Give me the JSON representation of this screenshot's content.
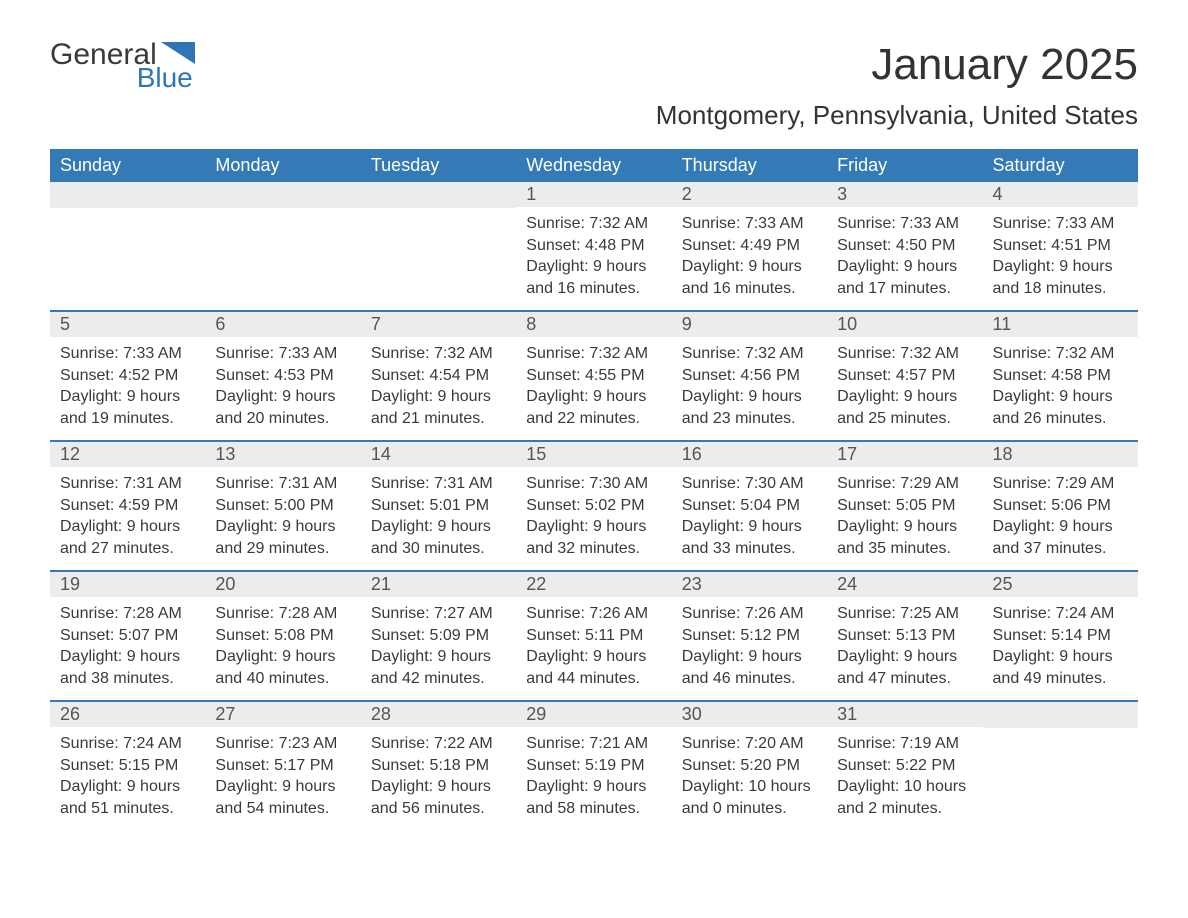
{
  "brand": {
    "word1": "General",
    "word2": "Blue",
    "color1": "#3a3a3a",
    "color2": "#3076b7"
  },
  "title": "January 2025",
  "location": "Montgomery, Pennsylvania, United States",
  "header_bg": "#347ab6",
  "header_fg": "#ffffff",
  "daynum_bg": "#ececec",
  "week_border": "#347ab6",
  "text_color": "#3a3a3a",
  "font_family": "Arial, Helvetica, sans-serif",
  "day_headers": [
    "Sunday",
    "Monday",
    "Tuesday",
    "Wednesday",
    "Thursday",
    "Friday",
    "Saturday"
  ],
  "weeks": [
    [
      null,
      null,
      null,
      {
        "n": "1",
        "sunrise": "7:32 AM",
        "sunset": "4:48 PM",
        "dl1": "Daylight: 9 hours",
        "dl2": "and 16 minutes."
      },
      {
        "n": "2",
        "sunrise": "7:33 AM",
        "sunset": "4:49 PM",
        "dl1": "Daylight: 9 hours",
        "dl2": "and 16 minutes."
      },
      {
        "n": "3",
        "sunrise": "7:33 AM",
        "sunset": "4:50 PM",
        "dl1": "Daylight: 9 hours",
        "dl2": "and 17 minutes."
      },
      {
        "n": "4",
        "sunrise": "7:33 AM",
        "sunset": "4:51 PM",
        "dl1": "Daylight: 9 hours",
        "dl2": "and 18 minutes."
      }
    ],
    [
      {
        "n": "5",
        "sunrise": "7:33 AM",
        "sunset": "4:52 PM",
        "dl1": "Daylight: 9 hours",
        "dl2": "and 19 minutes."
      },
      {
        "n": "6",
        "sunrise": "7:33 AM",
        "sunset": "4:53 PM",
        "dl1": "Daylight: 9 hours",
        "dl2": "and 20 minutes."
      },
      {
        "n": "7",
        "sunrise": "7:32 AM",
        "sunset": "4:54 PM",
        "dl1": "Daylight: 9 hours",
        "dl2": "and 21 minutes."
      },
      {
        "n": "8",
        "sunrise": "7:32 AM",
        "sunset": "4:55 PM",
        "dl1": "Daylight: 9 hours",
        "dl2": "and 22 minutes."
      },
      {
        "n": "9",
        "sunrise": "7:32 AM",
        "sunset": "4:56 PM",
        "dl1": "Daylight: 9 hours",
        "dl2": "and 23 minutes."
      },
      {
        "n": "10",
        "sunrise": "7:32 AM",
        "sunset": "4:57 PM",
        "dl1": "Daylight: 9 hours",
        "dl2": "and 25 minutes."
      },
      {
        "n": "11",
        "sunrise": "7:32 AM",
        "sunset": "4:58 PM",
        "dl1": "Daylight: 9 hours",
        "dl2": "and 26 minutes."
      }
    ],
    [
      {
        "n": "12",
        "sunrise": "7:31 AM",
        "sunset": "4:59 PM",
        "dl1": "Daylight: 9 hours",
        "dl2": "and 27 minutes."
      },
      {
        "n": "13",
        "sunrise": "7:31 AM",
        "sunset": "5:00 PM",
        "dl1": "Daylight: 9 hours",
        "dl2": "and 29 minutes."
      },
      {
        "n": "14",
        "sunrise": "7:31 AM",
        "sunset": "5:01 PM",
        "dl1": "Daylight: 9 hours",
        "dl2": "and 30 minutes."
      },
      {
        "n": "15",
        "sunrise": "7:30 AM",
        "sunset": "5:02 PM",
        "dl1": "Daylight: 9 hours",
        "dl2": "and 32 minutes."
      },
      {
        "n": "16",
        "sunrise": "7:30 AM",
        "sunset": "5:04 PM",
        "dl1": "Daylight: 9 hours",
        "dl2": "and 33 minutes."
      },
      {
        "n": "17",
        "sunrise": "7:29 AM",
        "sunset": "5:05 PM",
        "dl1": "Daylight: 9 hours",
        "dl2": "and 35 minutes."
      },
      {
        "n": "18",
        "sunrise": "7:29 AM",
        "sunset": "5:06 PM",
        "dl1": "Daylight: 9 hours",
        "dl2": "and 37 minutes."
      }
    ],
    [
      {
        "n": "19",
        "sunrise": "7:28 AM",
        "sunset": "5:07 PM",
        "dl1": "Daylight: 9 hours",
        "dl2": "and 38 minutes."
      },
      {
        "n": "20",
        "sunrise": "7:28 AM",
        "sunset": "5:08 PM",
        "dl1": "Daylight: 9 hours",
        "dl2": "and 40 minutes."
      },
      {
        "n": "21",
        "sunrise": "7:27 AM",
        "sunset": "5:09 PM",
        "dl1": "Daylight: 9 hours",
        "dl2": "and 42 minutes."
      },
      {
        "n": "22",
        "sunrise": "7:26 AM",
        "sunset": "5:11 PM",
        "dl1": "Daylight: 9 hours",
        "dl2": "and 44 minutes."
      },
      {
        "n": "23",
        "sunrise": "7:26 AM",
        "sunset": "5:12 PM",
        "dl1": "Daylight: 9 hours",
        "dl2": "and 46 minutes."
      },
      {
        "n": "24",
        "sunrise": "7:25 AM",
        "sunset": "5:13 PM",
        "dl1": "Daylight: 9 hours",
        "dl2": "and 47 minutes."
      },
      {
        "n": "25",
        "sunrise": "7:24 AM",
        "sunset": "5:14 PM",
        "dl1": "Daylight: 9 hours",
        "dl2": "and 49 minutes."
      }
    ],
    [
      {
        "n": "26",
        "sunrise": "7:24 AM",
        "sunset": "5:15 PM",
        "dl1": "Daylight: 9 hours",
        "dl2": "and 51 minutes."
      },
      {
        "n": "27",
        "sunrise": "7:23 AM",
        "sunset": "5:17 PM",
        "dl1": "Daylight: 9 hours",
        "dl2": "and 54 minutes."
      },
      {
        "n": "28",
        "sunrise": "7:22 AM",
        "sunset": "5:18 PM",
        "dl1": "Daylight: 9 hours",
        "dl2": "and 56 minutes."
      },
      {
        "n": "29",
        "sunrise": "7:21 AM",
        "sunset": "5:19 PM",
        "dl1": "Daylight: 9 hours",
        "dl2": "and 58 minutes."
      },
      {
        "n": "30",
        "sunrise": "7:20 AM",
        "sunset": "5:20 PM",
        "dl1": "Daylight: 10 hours",
        "dl2": "and 0 minutes."
      },
      {
        "n": "31",
        "sunrise": "7:19 AM",
        "sunset": "5:22 PM",
        "dl1": "Daylight: 10 hours",
        "dl2": "and 2 minutes."
      },
      null
    ]
  ],
  "labels": {
    "sunrise_prefix": "Sunrise: ",
    "sunset_prefix": "Sunset: "
  }
}
